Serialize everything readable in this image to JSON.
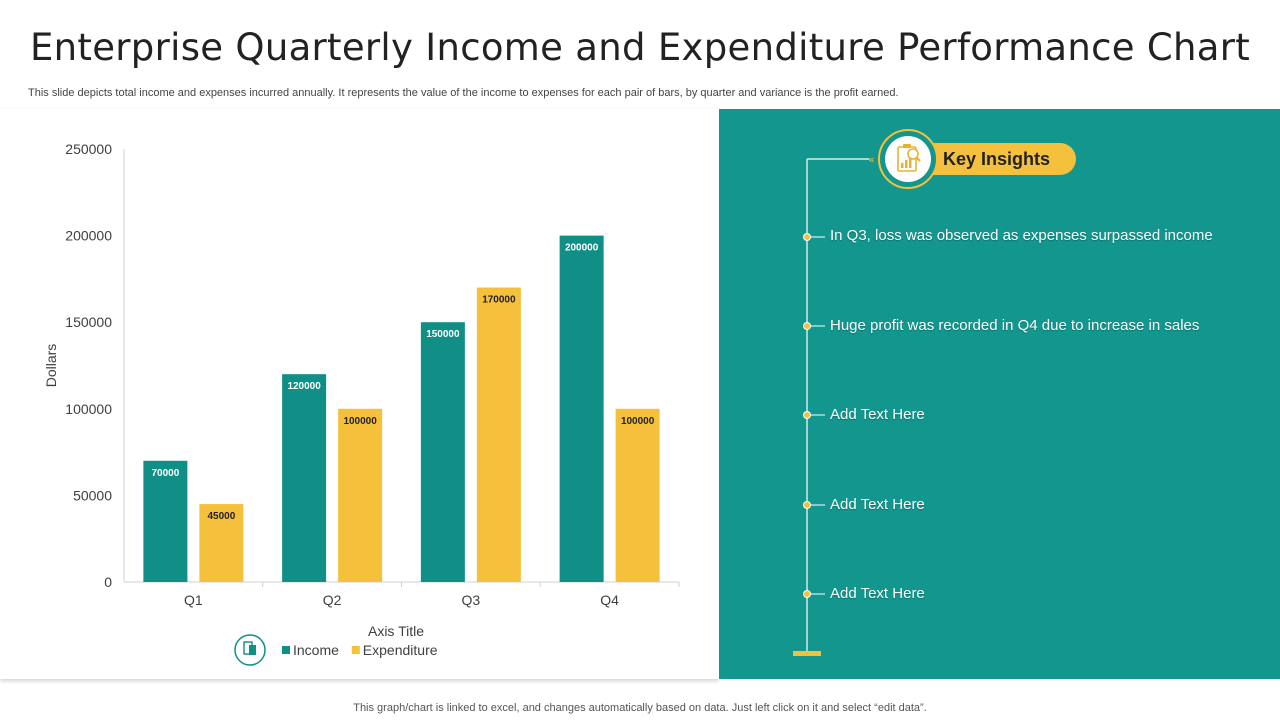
{
  "header": {
    "title": "Enterprise Quarterly Income and Expenditure Performance Chart",
    "subtitle": "This slide depicts total income and expenses incurred annually. It represents the value of the income to expenses for each pair of bars, by quarter and variance is the profit earned."
  },
  "colors": {
    "income": "#0F8F86",
    "expenditure": "#F5C03C",
    "panel": "#13968D",
    "white": "#FFFFFF"
  },
  "chart_data": {
    "type": "bar",
    "categories": [
      "Q1",
      "Q2",
      "Q3",
      "Q4"
    ],
    "series": [
      {
        "name": "Income",
        "values": [
          70000,
          120000,
          150000,
          200000
        ]
      },
      {
        "name": "Expenditure",
        "values": [
          45000,
          100000,
          170000,
          100000
        ]
      }
    ],
    "title": "",
    "xlabel": "Axis Title",
    "ylabel": "Dollars",
    "ylim": [
      0,
      250000
    ],
    "yticks": [
      0,
      50000,
      100000,
      150000,
      200000,
      250000
    ],
    "grid": false,
    "legend": "bottom"
  },
  "insights": {
    "heading": "Key Insights",
    "items": [
      "In Q3, loss was observed as expenses surpassed income",
      "Huge profit was recorded in Q4 due to increase in sales",
      "Add Text Here",
      "Add Text Here",
      "Add Text Here"
    ]
  },
  "footer": {
    "note": "This graph/chart is linked to excel,  and changes automatically based on data. Just left click on it and select “edit data”."
  }
}
